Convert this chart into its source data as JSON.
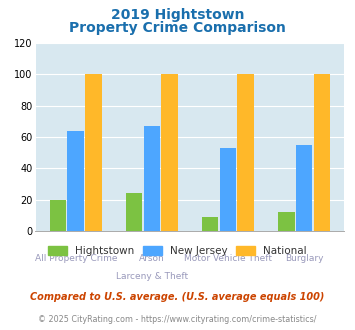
{
  "title_line1": "2019 Hightstown",
  "title_line2": "Property Crime Comparison",
  "cat_labels_row1": [
    "All Property Crime",
    "Arson",
    "Motor Vehicle Theft",
    "Burglary"
  ],
  "cat_labels_row2": [
    "",
    "Larceny & Theft",
    "",
    ""
  ],
  "hightstown": [
    20,
    24,
    9,
    12
  ],
  "new_jersey": [
    64,
    67,
    53,
    55
  ],
  "national": [
    100,
    100,
    100,
    100
  ],
  "color_hightstown": "#7cc242",
  "color_nj": "#4da6ff",
  "color_national": "#ffb829",
  "ylim": [
    0,
    120
  ],
  "yticks": [
    0,
    20,
    40,
    60,
    80,
    100,
    120
  ],
  "bg_color": "#d8e8f0",
  "footnote1": "Compared to U.S. average. (U.S. average equals 100)",
  "footnote2": "© 2025 CityRating.com - https://www.cityrating.com/crime-statistics/",
  "title_color": "#1a6fad",
  "footnote1_color": "#cc4400",
  "footnote2_color": "#888888",
  "label_color": "#9999bb",
  "legend_label_color": "#333333"
}
